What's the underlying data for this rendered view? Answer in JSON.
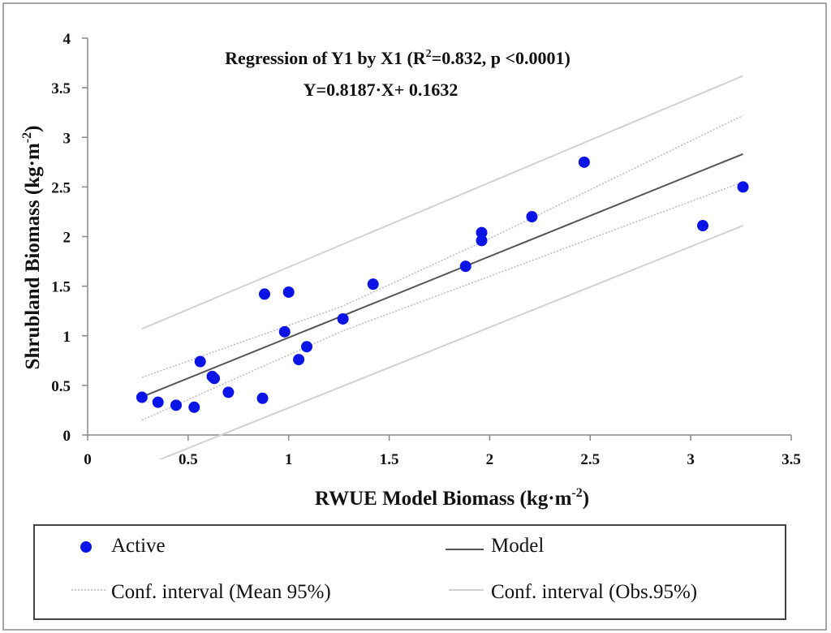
{
  "chart_data": {
    "type": "scatter",
    "title": "",
    "xlabel": {
      "main": "RWUE Model Biomass (kg·m",
      "sup": "-2",
      "end": ")"
    },
    "ylabel": {
      "main": "Shrubland Biomass (kg·m",
      "sup": "-2",
      "end": ")"
    },
    "xlim": [
      0,
      3.5
    ],
    "ylim": [
      0,
      4
    ],
    "x_ticks": [
      "0",
      "0.5",
      "1",
      "1.5",
      "2",
      "2.5",
      "3",
      "3.5"
    ],
    "y_ticks": [
      "0",
      "0.5",
      "1",
      "1.5",
      "2",
      "2.5",
      "3",
      "3.5",
      "4"
    ],
    "annotations": {
      "line1_a": "Regression of Y1 by X1 (R",
      "line1_sup": "2",
      "line1_b": "=0.832, p <0.0001)",
      "line2": "Y=0.8187·X+ 0.1632"
    },
    "series": [
      {
        "name": "Active",
        "type": "scatter",
        "color": "#0a14e6",
        "points": [
          {
            "x": 0.27,
            "y": 0.38
          },
          {
            "x": 0.35,
            "y": 0.33
          },
          {
            "x": 0.44,
            "y": 0.3
          },
          {
            "x": 0.53,
            "y": 0.28
          },
          {
            "x": 0.56,
            "y": 0.74
          },
          {
            "x": 0.62,
            "y": 0.59
          },
          {
            "x": 0.63,
            "y": 0.57
          },
          {
            "x": 0.7,
            "y": 0.43
          },
          {
            "x": 0.87,
            "y": 0.37
          },
          {
            "x": 0.88,
            "y": 1.42
          },
          {
            "x": 0.98,
            "y": 1.04
          },
          {
            "x": 1.0,
            "y": 1.44
          },
          {
            "x": 1.05,
            "y": 0.76
          },
          {
            "x": 1.09,
            "y": 0.89
          },
          {
            "x": 1.27,
            "y": 1.17
          },
          {
            "x": 1.42,
            "y": 1.52
          },
          {
            "x": 1.88,
            "y": 1.7
          },
          {
            "x": 1.96,
            "y": 2.04
          },
          {
            "x": 1.96,
            "y": 1.96
          },
          {
            "x": 2.21,
            "y": 2.2
          },
          {
            "x": 2.47,
            "y": 2.75
          },
          {
            "x": 3.06,
            "y": 2.11
          },
          {
            "x": 3.26,
            "y": 2.5
          }
        ]
      },
      {
        "name": "Model",
        "type": "line",
        "color": "#555555",
        "slope": 0.8187,
        "intercept": 0.1632,
        "x_range": [
          0.27,
          3.26
        ]
      },
      {
        "name": "Conf. interval (Mean 95%)",
        "type": "band",
        "upper": [
          [
            0.27,
            0.58
          ],
          [
            1.27,
            1.3
          ],
          [
            2.0,
            1.98
          ],
          [
            3.26,
            3.22
          ]
        ],
        "lower": [
          [
            0.27,
            0.15
          ],
          [
            1.27,
            1.05
          ],
          [
            2.0,
            1.6
          ],
          [
            3.26,
            2.55
          ]
        ]
      },
      {
        "name": "Conf. interval (Obs.95%)",
        "type": "band",
        "upper": [
          [
            0.27,
            1.07
          ],
          [
            3.26,
            3.62
          ]
        ],
        "lower": [
          [
            0.27,
            -0.32
          ],
          [
            3.26,
            2.11
          ]
        ]
      }
    ],
    "legend": {
      "position": "bottom",
      "items": [
        {
          "label": "Active",
          "marker": "dot"
        },
        {
          "label": "Model",
          "marker": "solid-line"
        },
        {
          "label": "Conf. interval (Mean 95%)",
          "marker": "dotted-line"
        },
        {
          "label": "Conf. interval (Obs.95%)",
          "marker": "light-line"
        }
      ]
    },
    "grid": false
  },
  "colors": {
    "point": "#0a14e6",
    "model": "#555555",
    "mean_ci": "#b8b8c0",
    "obs_ci": "#d2d2d2",
    "frame": "#7a7a7a"
  }
}
